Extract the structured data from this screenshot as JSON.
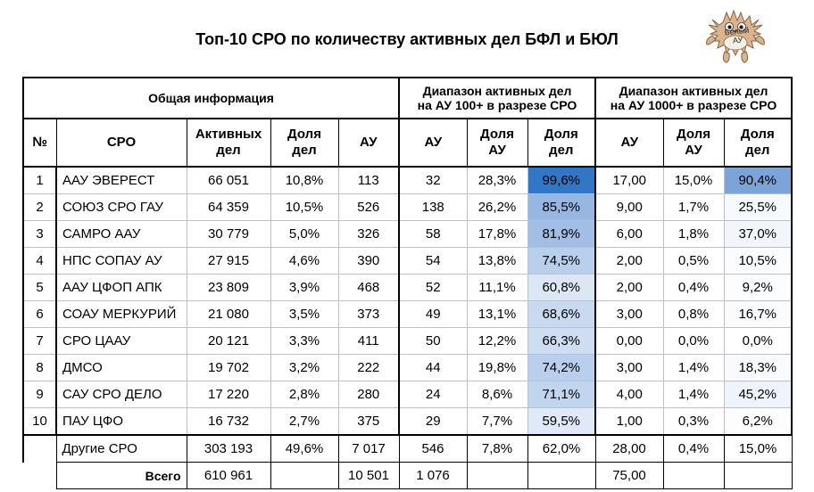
{
  "title": "Топ-10 СРО по количеству активных дел БФЛ и БЮЛ",
  "logo": {
    "text": "Белый АУ"
  },
  "headers": {
    "group_general": "Общая информация",
    "group_100_line1": "Диапазон активных дел",
    "group_100_line2": "на АУ 100+ в разрезе СРО",
    "group_1000_line1": "Диапазон активных дел",
    "group_1000_line2": "на АУ 1000+ в разрезе СРО",
    "col_no": "№",
    "col_sro": "СРО",
    "col_cases_1": "Активных",
    "col_cases_2": "дел",
    "col_share_1": "Доля",
    "col_share_2": "дел",
    "col_au": "АУ",
    "col_au100": "АУ",
    "col_share_au_1": "Доля",
    "col_share_au_2": "АУ",
    "col_share_cases_1": "Доля",
    "col_share_cases_2": "дел",
    "col_au1000": "АУ",
    "col_share_au1000_1": "Доля",
    "col_share_au1000_2": "АУ",
    "col_share_cases1000_1": "Доля",
    "col_share_cases1000_2": "дел"
  },
  "rows": [
    {
      "no": "1",
      "sro": "ААУ ЭВЕРЕСТ",
      "cases": "66 051",
      "share": "10,8%",
      "au": "113",
      "au100": "32",
      "au100_share": "28,3%",
      "cases100_share": "99,6%",
      "cases100_pct": 99.6,
      "au1000": "17,00",
      "au1000_share": "15,0%",
      "cases1000_share": "90,4%",
      "cases1000_pct": 90.4
    },
    {
      "no": "2",
      "sro": "СОЮЗ СРО ГАУ",
      "cases": "64 359",
      "share": "10,5%",
      "au": "526",
      "au100": "138",
      "au100_share": "26,2%",
      "cases100_share": "85,5%",
      "cases100_pct": 85.5,
      "au1000": "9,00",
      "au1000_share": "1,7%",
      "cases1000_share": "25,5%",
      "cases1000_pct": 25.5
    },
    {
      "no": "3",
      "sro": "САМРО ААУ",
      "cases": "30 779",
      "share": "5,0%",
      "au": "326",
      "au100": "58",
      "au100_share": "17,8%",
      "cases100_share": "81,9%",
      "cases100_pct": 81.9,
      "au1000": "6,00",
      "au1000_share": "1,8%",
      "cases1000_share": "37,0%",
      "cases1000_pct": 37.0
    },
    {
      "no": "4",
      "sro": "НПС СОПАУ АУ",
      "cases": "27 915",
      "share": "4,6%",
      "au": "390",
      "au100": "54",
      "au100_share": "13,8%",
      "cases100_share": "74,5%",
      "cases100_pct": 74.5,
      "au1000": "2,00",
      "au1000_share": "0,5%",
      "cases1000_share": "10,5%",
      "cases1000_pct": 10.5
    },
    {
      "no": "5",
      "sro": "ААУ ЦФОП АПК",
      "cases": "23 809",
      "share": "3,9%",
      "au": "468",
      "au100": "52",
      "au100_share": "11,1%",
      "cases100_share": "60,8%",
      "cases100_pct": 60.8,
      "au1000": "2,00",
      "au1000_share": "0,4%",
      "cases1000_share": "9,2%",
      "cases1000_pct": 9.2
    },
    {
      "no": "6",
      "sro": "СОАУ МЕРКУРИЙ",
      "cases": "21 080",
      "share": "3,5%",
      "au": "373",
      "au100": "49",
      "au100_share": "13,1%",
      "cases100_share": "68,6%",
      "cases100_pct": 68.6,
      "au1000": "3,00",
      "au1000_share": "0,8%",
      "cases1000_share": "16,7%",
      "cases1000_pct": 16.7
    },
    {
      "no": "7",
      "sro": "СРО ЦААУ",
      "cases": "20 121",
      "share": "3,3%",
      "au": "411",
      "au100": "50",
      "au100_share": "12,2%",
      "cases100_share": "66,3%",
      "cases100_pct": 66.3,
      "au1000": "0,00",
      "au1000_share": "0,0%",
      "cases1000_share": "0,0%",
      "cases1000_pct": 0.0
    },
    {
      "no": "8",
      "sro": "ДМСО",
      "cases": "19 702",
      "share": "3,2%",
      "au": "222",
      "au100": "44",
      "au100_share": "19,8%",
      "cases100_share": "74,2%",
      "cases100_pct": 74.2,
      "au1000": "3,00",
      "au1000_share": "1,4%",
      "cases1000_share": "18,3%",
      "cases1000_pct": 18.3
    },
    {
      "no": "9",
      "sro": "САУ СРО ДЕЛО",
      "cases": "17 220",
      "share": "2,8%",
      "au": "280",
      "au100": "24",
      "au100_share": "8,6%",
      "cases100_share": "71,1%",
      "cases100_pct": 71.1,
      "au1000": "4,00",
      "au1000_share": "1,4%",
      "cases1000_share": "45,2%",
      "cases1000_pct": 45.2
    },
    {
      "no": "10",
      "sro": "ПАУ ЦФО",
      "cases": "16 732",
      "share": "2,7%",
      "au": "375",
      "au100": "29",
      "au100_share": "7,7%",
      "cases100_share": "59,5%",
      "cases100_pct": 59.5,
      "au1000": "1,00",
      "au1000_share": "0,3%",
      "cases1000_share": "6,2%",
      "cases1000_pct": 6.2
    }
  ],
  "others": {
    "sro": "Другие СРО",
    "cases": "303 193",
    "share": "49,6%",
    "au": "7 017",
    "au100": "546",
    "au100_share": "7,8%",
    "cases100_share": "62,0%",
    "au1000": "28,00",
    "au1000_share": "0,4%",
    "cases1000_share": "15,0%"
  },
  "total": {
    "label": "Всего",
    "cases": "610 961",
    "au": "10 501",
    "au100": "1 076",
    "au1000": "75,00"
  }
}
